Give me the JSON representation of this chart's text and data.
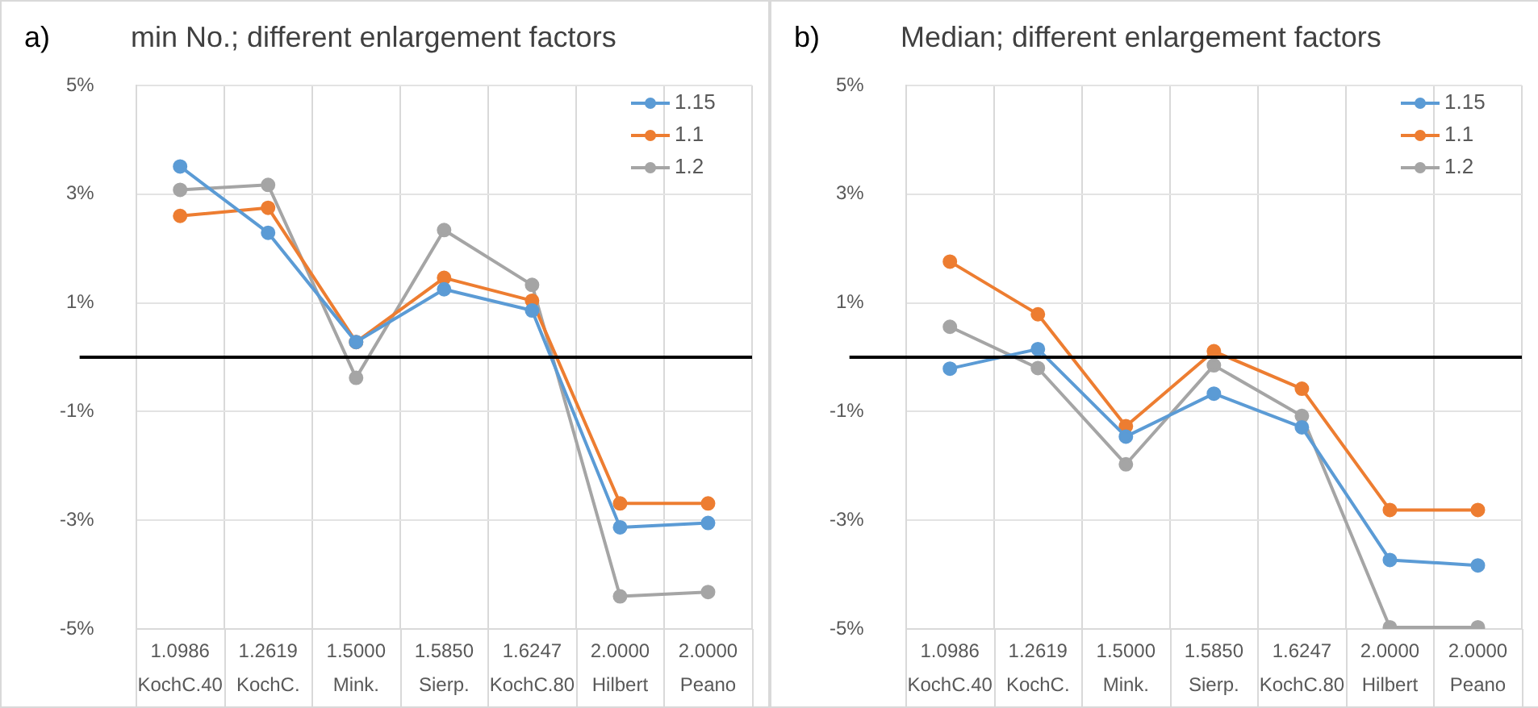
{
  "chart_data": [
    {
      "type": "line",
      "title": "min No.; different enlargement factors",
      "annotations": [
        "a)"
      ],
      "categories": [
        "1.0986\nKochC.40",
        "1.2619\nKochC.",
        "1.5000\nMink.",
        "1.5850\nSierp.",
        "1.6247\nKochC.80",
        "2.0000\nHilbert",
        "2.0000\nPeano"
      ],
      "series": [
        {
          "name": "1.15",
          "color": "#5b9bd5",
          "values": [
            3.51,
            2.29,
            0.28,
            1.25,
            0.86,
            -3.13,
            -3.05
          ]
        },
        {
          "name": "1.1",
          "color": "#ed7d31",
          "values": [
            2.6,
            2.75,
            0.28,
            1.46,
            1.04,
            -2.69,
            -2.69
          ]
        },
        {
          "name": "1.2",
          "color": "#a5a5a5",
          "values": [
            3.08,
            3.17,
            -0.38,
            2.34,
            1.33,
            -4.4,
            -4.32
          ]
        }
      ],
      "ylim": [
        -5,
        5
      ],
      "yticks": [
        {
          "value": -5,
          "label": "-5%"
        },
        {
          "value": -3,
          "label": "-3%"
        },
        {
          "value": -1,
          "label": "-1%"
        },
        {
          "value": 1,
          "label": "1%"
        },
        {
          "value": 3,
          "label": "3%"
        },
        {
          "value": 5,
          "label": "5%"
        }
      ],
      "ref_lines": [
        {
          "axis": "y",
          "value": 0,
          "color": "#000000"
        }
      ],
      "grid": true,
      "legend": "top right",
      "marker": "circle",
      "line_style": "solid"
    },
    {
      "type": "line",
      "title": "Median; different enlargement factors",
      "annotations": [
        "b)"
      ],
      "categories": [
        "1.0986\nKochC.40",
        "1.2619\nKochC.",
        "1.5000\nMink.",
        "1.5850\nSierp.",
        "1.6247\nKochC.80",
        "2.0000\nHilbert",
        "2.0000\nPeano"
      ],
      "series": [
        {
          "name": "1.15",
          "color": "#5b9bd5",
          "values": [
            -0.21,
            0.15,
            -1.46,
            -0.67,
            -1.29,
            -3.73,
            -3.83
          ]
        },
        {
          "name": "1.1",
          "color": "#ed7d31",
          "values": [
            1.76,
            0.79,
            -1.27,
            0.11,
            -0.58,
            -2.81,
            -2.81
          ]
        },
        {
          "name": "1.2",
          "color": "#a5a5a5",
          "values": [
            0.56,
            -0.2,
            -1.97,
            -0.15,
            -1.08,
            -4.97,
            -4.97
          ]
        }
      ],
      "ylim": [
        -5,
        5
      ],
      "yticks": [
        {
          "value": -5,
          "label": "-5%"
        },
        {
          "value": -3,
          "label": "-3%"
        },
        {
          "value": -1,
          "label": "-1%"
        },
        {
          "value": 1,
          "label": "1%"
        },
        {
          "value": 3,
          "label": "3%"
        },
        {
          "value": 5,
          "label": "5%"
        }
      ],
      "ref_lines": [
        {
          "axis": "y",
          "value": 0,
          "color": "#000000"
        }
      ],
      "grid": true,
      "legend": "top right",
      "marker": "circle",
      "line_style": "solid"
    }
  ]
}
